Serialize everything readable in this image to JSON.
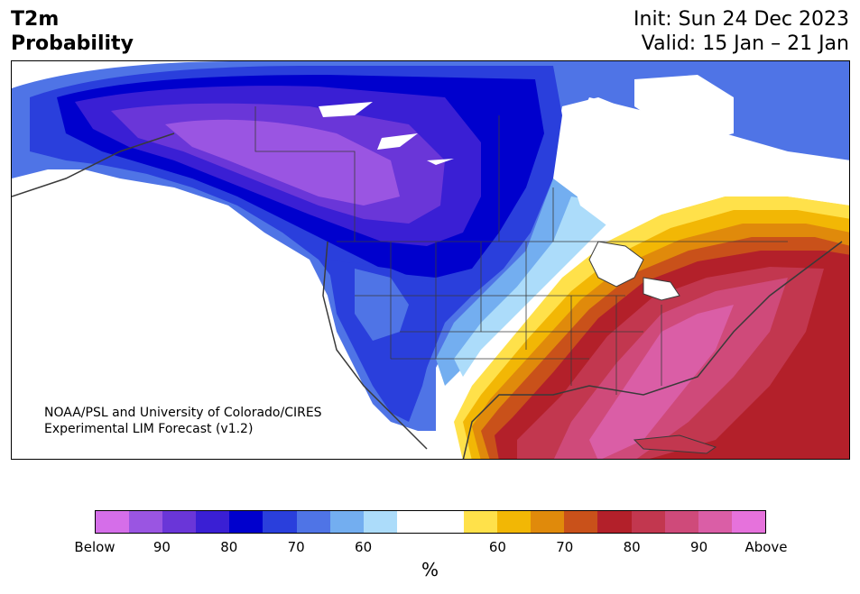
{
  "title": {
    "left_line1": "T2m",
    "left_line2": "Probability",
    "init": "Init: Sun 24 Dec 2023",
    "valid": "Valid: 15 Jan – 21 Jan"
  },
  "credit": {
    "line1": "NOAA/PSL and University of Colorado/CIRES",
    "line2": "Experimental LIM Forecast (v1.2)"
  },
  "legend": {
    "unit": "%",
    "colors": [
      "#d56ee9",
      "#9a55e2",
      "#6a36d8",
      "#3a1fd4",
      "#0000cd",
      "#2a3fdc",
      "#4f74e6",
      "#73aef0",
      "#acdcfa",
      "#ffffff",
      "#ffffff",
      "#ffe14a",
      "#f2b705",
      "#e08a0b",
      "#c9511a",
      "#b3202a",
      "#c2374f",
      "#cf4a7a",
      "#da5ea6",
      "#e672dc"
    ],
    "ticks": [
      "Below",
      "90",
      "80",
      "70",
      "60",
      "60",
      "70",
      "80",
      "90",
      "Above"
    ]
  },
  "map": {
    "region": "North America",
    "colors": {
      "land": "#ffffff",
      "border": "#3a3a3a"
    }
  }
}
